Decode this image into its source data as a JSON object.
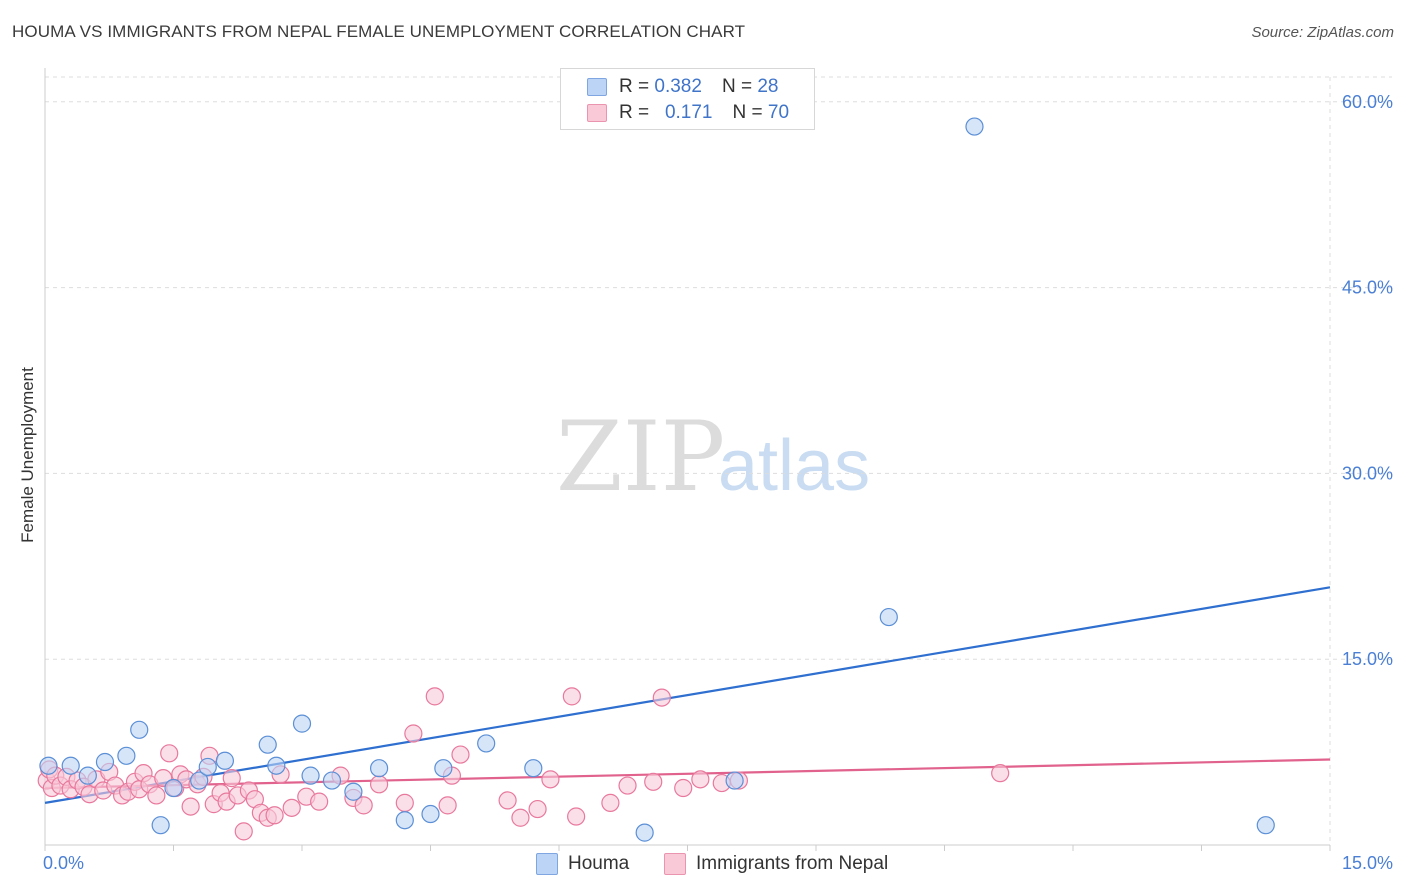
{
  "title": "HOUMA VS IMMIGRANTS FROM NEPAL FEMALE UNEMPLOYMENT CORRELATION CHART",
  "source": "Source: ZipAtlas.com",
  "watermark": {
    "zip": "ZIP",
    "atlas": "atlas"
  },
  "legend": {
    "rows": [
      {
        "r_label": "R =",
        "r_value": "0.382",
        "n_label": "N =",
        "n_value": "28"
      },
      {
        "r_label": "R =",
        "r_value": "0.171",
        "n_label": "N =",
        "n_value": "70"
      }
    ]
  },
  "bottom_legend": {
    "houma": "Houma",
    "nepal": "Immigrants from Nepal"
  },
  "colors": {
    "houma_fill": "#bcd4f5",
    "houma_stroke": "#5b8fd6",
    "houma_line": "#2e6fd0",
    "nepal_fill": "#f9c9d8",
    "nepal_stroke": "#e8799d",
    "nepal_line": "#e0628d",
    "axis_text": "#4a7fd4",
    "grid": "#dddddd"
  },
  "chart_data": {
    "type": "scatter",
    "title": "HOUMA VS IMMIGRANTS FROM NEPAL FEMALE UNEMPLOYMENT CORRELATION CHART",
    "xlabel": "",
    "ylabel": "Female Unemployment",
    "xlim": [
      0,
      15
    ],
    "ylim": [
      0,
      62
    ],
    "x_tick_labels": [
      "0.0%",
      "15.0%"
    ],
    "y_ticks": [
      15,
      30,
      45,
      60
    ],
    "y_tick_labels": [
      "15.0%",
      "30.0%",
      "45.0%",
      "60.0%"
    ],
    "grid": true,
    "series": [
      {
        "name": "Houma",
        "R": 0.382,
        "N": 28,
        "trend": {
          "x": [
            0,
            15
          ],
          "y": [
            3.4,
            20.8
          ]
        },
        "points": [
          [
            0.04,
            6.4
          ],
          [
            0.3,
            6.4
          ],
          [
            0.5,
            5.6
          ],
          [
            0.7,
            6.7
          ],
          [
            0.95,
            7.2
          ],
          [
            1.1,
            9.3
          ],
          [
            1.35,
            1.6
          ],
          [
            1.5,
            4.6
          ],
          [
            1.8,
            5.2
          ],
          [
            1.9,
            6.3
          ],
          [
            2.1,
            6.8
          ],
          [
            2.6,
            8.1
          ],
          [
            2.7,
            6.4
          ],
          [
            3.0,
            9.8
          ],
          [
            3.1,
            5.6
          ],
          [
            3.35,
            5.2
          ],
          [
            3.6,
            4.3
          ],
          [
            3.9,
            6.2
          ],
          [
            4.2,
            2.0
          ],
          [
            4.5,
            2.5
          ],
          [
            4.65,
            6.2
          ],
          [
            5.15,
            8.2
          ],
          [
            5.7,
            6.2
          ],
          [
            7.0,
            1.0
          ],
          [
            8.05,
            5.2
          ],
          [
            10.85,
            58.0
          ],
          [
            9.85,
            18.4
          ],
          [
            14.25,
            1.6
          ]
        ]
      },
      {
        "name": "Immigrants from Nepal",
        "R": 0.171,
        "N": 70,
        "trend": {
          "x": [
            0,
            15
          ],
          "y": [
            4.6,
            6.9
          ]
        },
        "points": [
          [
            0.02,
            5.2
          ],
          [
            0.05,
            6.1
          ],
          [
            0.08,
            4.6
          ],
          [
            0.12,
            5.6
          ],
          [
            0.18,
            4.8
          ],
          [
            0.25,
            5.5
          ],
          [
            0.3,
            4.5
          ],
          [
            0.38,
            5.2
          ],
          [
            0.45,
            4.7
          ],
          [
            0.52,
            4.1
          ],
          [
            0.6,
            5.3
          ],
          [
            0.68,
            4.4
          ],
          [
            0.75,
            5.9
          ],
          [
            0.82,
            4.8
          ],
          [
            0.9,
            4.0
          ],
          [
            0.97,
            4.3
          ],
          [
            1.05,
            5.1
          ],
          [
            1.1,
            4.5
          ],
          [
            1.15,
            5.8
          ],
          [
            1.22,
            4.9
          ],
          [
            1.3,
            4.0
          ],
          [
            1.38,
            5.4
          ],
          [
            1.45,
            7.4
          ],
          [
            1.52,
            4.6
          ],
          [
            1.58,
            5.7
          ],
          [
            1.65,
            5.3
          ],
          [
            1.7,
            3.1
          ],
          [
            1.78,
            4.9
          ],
          [
            1.85,
            5.5
          ],
          [
            1.92,
            7.2
          ],
          [
            1.97,
            3.3
          ],
          [
            2.05,
            4.2
          ],
          [
            2.12,
            3.5
          ],
          [
            2.18,
            5.4
          ],
          [
            2.25,
            4.0
          ],
          [
            2.32,
            1.1
          ],
          [
            2.38,
            4.4
          ],
          [
            2.45,
            3.7
          ],
          [
            2.52,
            2.6
          ],
          [
            2.6,
            2.2
          ],
          [
            2.68,
            2.4
          ],
          [
            2.75,
            5.7
          ],
          [
            2.88,
            3.0
          ],
          [
            3.05,
            3.9
          ],
          [
            3.2,
            3.5
          ],
          [
            3.45,
            5.6
          ],
          [
            3.6,
            3.8
          ],
          [
            3.72,
            3.2
          ],
          [
            3.9,
            4.9
          ],
          [
            4.2,
            3.4
          ],
          [
            4.3,
            9.0
          ],
          [
            4.55,
            12.0
          ],
          [
            4.7,
            3.2
          ],
          [
            4.75,
            5.6
          ],
          [
            4.85,
            7.3
          ],
          [
            5.4,
            3.6
          ],
          [
            5.55,
            2.2
          ],
          [
            5.75,
            2.9
          ],
          [
            5.9,
            5.3
          ],
          [
            6.15,
            12.0
          ],
          [
            6.2,
            2.3
          ],
          [
            6.6,
            3.4
          ],
          [
            6.8,
            4.8
          ],
          [
            7.1,
            5.1
          ],
          [
            7.2,
            11.9
          ],
          [
            7.45,
            4.6
          ],
          [
            7.65,
            5.3
          ],
          [
            7.9,
            5.0
          ],
          [
            8.1,
            5.2
          ],
          [
            11.15,
            5.8
          ]
        ]
      }
    ]
  }
}
